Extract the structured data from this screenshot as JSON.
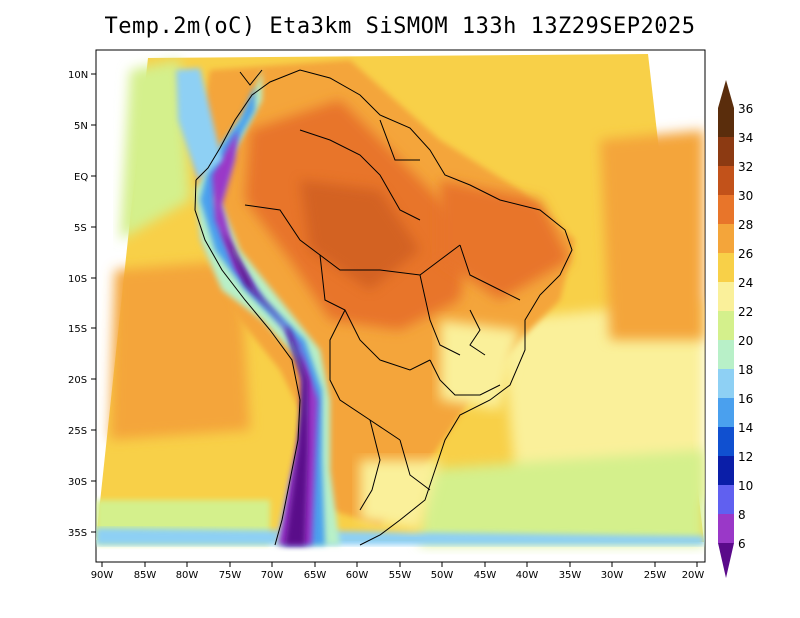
{
  "title": "Temp.2m(oC) Eta3km SiSMOM 133h 13Z29SEP2025",
  "map": {
    "lat_labels": [
      "10N",
      "5N",
      "EQ",
      "5S",
      "10S",
      "15S",
      "20S",
      "25S",
      "30S",
      "35S"
    ],
    "lon_labels": [
      "90W",
      "85W",
      "80W",
      "75W",
      "70W",
      "65W",
      "60W",
      "55W",
      "50W",
      "45W",
      "40W",
      "35W",
      "30W",
      "25W",
      "20W"
    ]
  },
  "colorbar": {
    "labels": [
      "36",
      "34",
      "32",
      "30",
      "28",
      "26",
      "24",
      "22",
      "20",
      "18",
      "16",
      "14",
      "12",
      "10",
      "8",
      "6"
    ],
    "colors": {
      "c36": "#5a2d0c",
      "c34": "#8c3a12",
      "c32": "#c2521a",
      "c30": "#e8752a",
      "c28": "#f4a53a",
      "c26": "#f8d048",
      "c24": "#faf09a",
      "c22": "#d4f08c",
      "c20": "#b8f0c8",
      "c18": "#8ed0f4",
      "c16": "#4aa0ee",
      "c14": "#1050d0",
      "c12": "#0a1ea8",
      "c10": "#6060f0",
      "c8": "#9a38c8",
      "c6": "#5a0a8a"
    }
  }
}
